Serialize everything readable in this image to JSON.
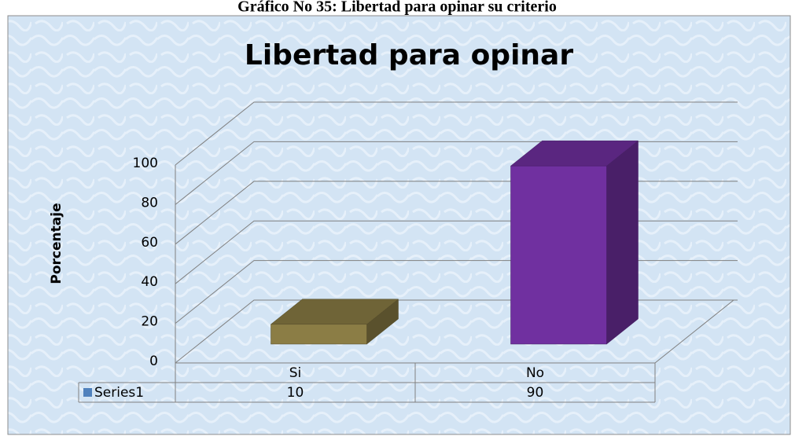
{
  "caption": "Gráfico  No 35: Libertad para opinar su criterio",
  "chart_data": {
    "type": "bar3d",
    "title": "Libertad para opinar",
    "y_label": "Porcentaje",
    "categories": [
      "Si",
      "No"
    ],
    "series": [
      {
        "name": "Series1",
        "color": "#4f81bd",
        "values": [
          10,
          90
        ]
      }
    ],
    "bar_colors": [
      "#8b7d45",
      "#7030a0"
    ],
    "ylim": [
      0,
      100
    ],
    "yticks": [
      0,
      20,
      40,
      60,
      80,
      100
    ],
    "grid": true,
    "data_table": true
  }
}
